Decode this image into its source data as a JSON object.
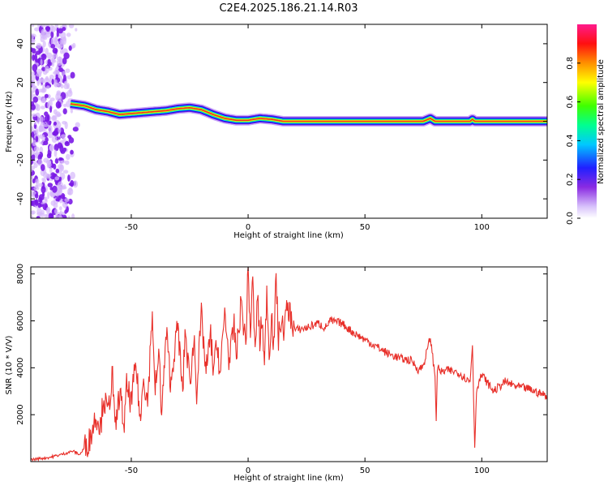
{
  "title": "C2E4.2025.186.21.14.R03",
  "colors": {
    "snr_line": "#e8302a",
    "ridge_core": "#e8302a",
    "noise_dark": "#7a18e6",
    "noise_light": "#d6b8fb"
  },
  "chart_data": [
    {
      "type": "heatmap",
      "title": "C2E4.2025.186.21.14.R03",
      "xlabel": "Height of straight line (km)",
      "ylabel": "Frequency (Hz)",
      "xlim": [
        -93,
        128
      ],
      "ylim": [
        -50,
        50
      ],
      "xticks": [
        -50,
        0,
        50,
        100
      ],
      "yticks": [
        -40,
        -20,
        0,
        20,
        40
      ],
      "colorbar": {
        "label": "Normalized spectral amplitude",
        "range": [
          0,
          1
        ],
        "ticks": [
          "0.0",
          "0.2",
          "0.4",
          "0.6",
          "0.8"
        ],
        "colormap": "rainbow"
      },
      "noise_region_x": [
        -93,
        -72
      ],
      "ridge": {
        "x": [
          -76,
          -70,
          -65,
          -60,
          -55,
          -50,
          -45,
          -40,
          -35,
          -30,
          -25,
          -20,
          -15,
          -10,
          -5,
          0,
          5,
          10,
          15,
          20,
          75,
          78,
          80,
          95,
          96,
          97,
          128
        ],
        "frequency": [
          9,
          8,
          6,
          5,
          3.5,
          4,
          4.5,
          5,
          5.5,
          6.5,
          7,
          6,
          3.5,
          1.5,
          0.5,
          0.5,
          1.5,
          1,
          0,
          0,
          0,
          1.5,
          0,
          0,
          1,
          0,
          0
        ]
      }
    },
    {
      "type": "line",
      "xlabel": "Height of straight line (km)",
      "ylabel": "SNR (10 * V/V)",
      "xlim": [
        -93,
        128
      ],
      "ylim": [
        0,
        8300
      ],
      "xticks": [
        -50,
        0,
        50,
        100
      ],
      "yticks": [
        2000,
        4000,
        6000,
        8000
      ],
      "series": [
        {
          "x": [
            -93,
            -90,
            -85,
            -80,
            -75,
            -72,
            -70,
            -68,
            -65,
            -63,
            -62,
            -60,
            -58,
            -57,
            -55,
            -53,
            -52,
            -50,
            -48,
            -46,
            -45,
            -43,
            -41,
            -40,
            -38,
            -37,
            -35,
            -33,
            -32,
            -30,
            -28,
            -27,
            -25,
            -23,
            -22,
            -20,
            -18,
            -16,
            -15,
            -13,
            -12,
            -10,
            -8,
            -6,
            -5,
            -3,
            -1,
            0,
            1,
            2,
            3,
            4,
            5,
            6,
            7,
            8,
            9,
            10,
            11,
            12,
            13,
            14,
            15,
            17,
            20,
            25,
            30,
            33,
            35,
            40,
            45,
            50,
            55,
            60,
            65,
            70,
            73,
            75,
            78,
            80,
            80.5,
            81,
            83,
            85,
            90,
            95,
            96,
            97,
            97.5,
            98,
            100,
            105,
            110,
            115,
            120,
            125,
            128
          ],
          "y": [
            80,
            120,
            180,
            300,
            450,
            300,
            600,
            900,
            2000,
            1500,
            2800,
            2000,
            3800,
            1200,
            3000,
            1500,
            3200,
            2500,
            4200,
            1500,
            3800,
            2500,
            6500,
            3000,
            4500,
            2000,
            5500,
            3200,
            4400,
            5800,
            2800,
            5600,
            3400,
            5200,
            3000,
            6200,
            3800,
            5400,
            4000,
            5000,
            3600,
            6400,
            4200,
            5800,
            4500,
            6800,
            5000,
            8200,
            5500,
            7800,
            4400,
            7200,
            5000,
            6200,
            3900,
            7500,
            4500,
            6400,
            4800,
            7900,
            5200,
            6000,
            5600,
            6600,
            5600,
            5700,
            5900,
            5700,
            6000,
            5900,
            5500,
            5200,
            4900,
            4600,
            4400,
            4300,
            3900,
            4100,
            5300,
            3600,
            1800,
            4000,
            3800,
            3900,
            3800,
            3400,
            5000,
            600,
            2400,
            3200,
            3700,
            3000,
            3400,
            3200,
            3100,
            2900,
            2800
          ]
        }
      ]
    }
  ]
}
